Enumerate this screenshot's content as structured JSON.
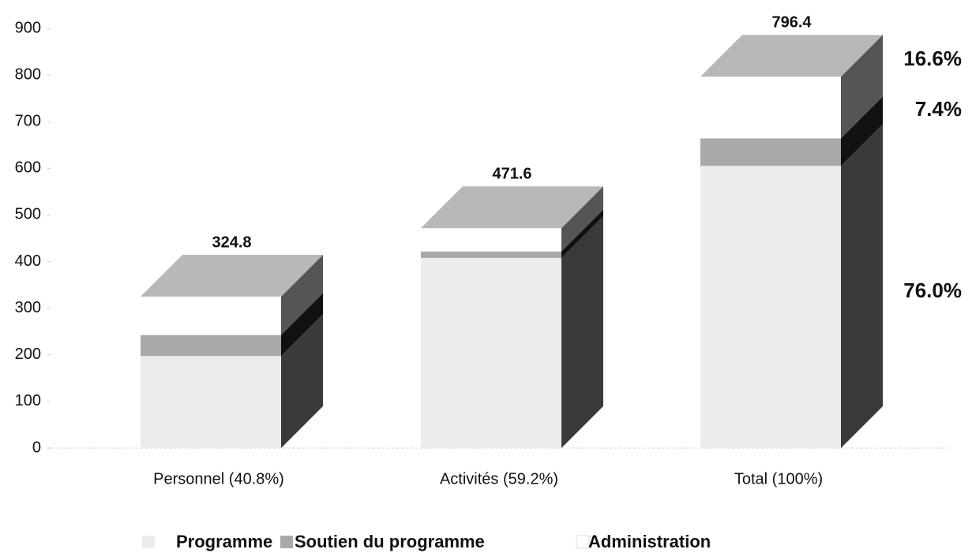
{
  "chart_data": {
    "type": "bar3d_stacked",
    "categories": [
      "Personnel (40.8%)",
      "Activités (59.2%)",
      "Total (100%)"
    ],
    "series": [
      {
        "name": "Programme",
        "color": "#ececec",
        "values": [
          197.5,
          407.8,
          605.3
        ]
      },
      {
        "name": "Soutien du programme",
        "color": "#a9a9a9",
        "values": [
          45.0,
          13.9,
          58.9
        ]
      },
      {
        "name": "Administration",
        "color": "#ffffff",
        "values": [
          82.3,
          49.9,
          132.2
        ]
      }
    ],
    "totals": [
      324.8,
      471.6,
      796.4
    ],
    "annotations": [
      "16.6%",
      "7.4%",
      "76.0%"
    ],
    "ylim": [
      0,
      900
    ],
    "yticks": [
      0,
      100,
      200,
      300,
      400,
      500,
      600,
      700,
      800,
      900
    ]
  }
}
